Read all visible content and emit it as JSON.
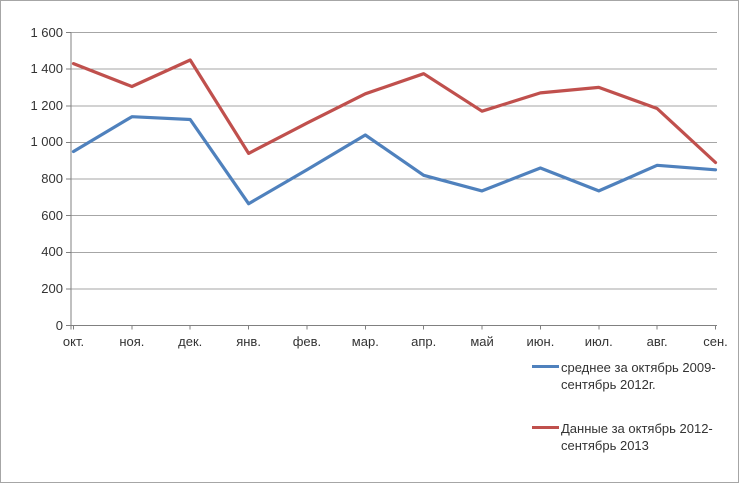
{
  "window": {
    "background": "#ffffff",
    "border_color": "#a6a6a6"
  },
  "chart_data": {
    "type": "line",
    "categories": [
      "окт.",
      "ноя.",
      "дек.",
      "янв.",
      "фев.",
      "мар.",
      "апр.",
      "май",
      "июн.",
      "июл.",
      "авг.",
      "сен."
    ],
    "series": [
      {
        "name": "среднее за октябрь 2009-сентябрь 2012г.",
        "color": "#4F81BD",
        "values": [
          950,
          1140,
          1125,
          665,
          850,
          1040,
          820,
          735,
          860,
          735,
          875,
          850
        ]
      },
      {
        "name": "Данные за октябрь 2012-сентябрь 2013",
        "color": "#C0504D",
        "values": [
          1430,
          1305,
          1450,
          940,
          1105,
          1265,
          1375,
          1170,
          1270,
          1300,
          1185,
          890
        ]
      }
    ],
    "ylim": [
      0,
      1600
    ],
    "ytick_step": 200,
    "ytick_labels": [
      "0",
      "200",
      "400",
      "600",
      "800",
      "1 000",
      "1 200",
      "1 400",
      "1 600"
    ],
    "grid": true,
    "legend_position": "bottom-right",
    "colors": {
      "grid": "#a6a6a6",
      "axis": "#808080",
      "text": "#333333"
    }
  }
}
